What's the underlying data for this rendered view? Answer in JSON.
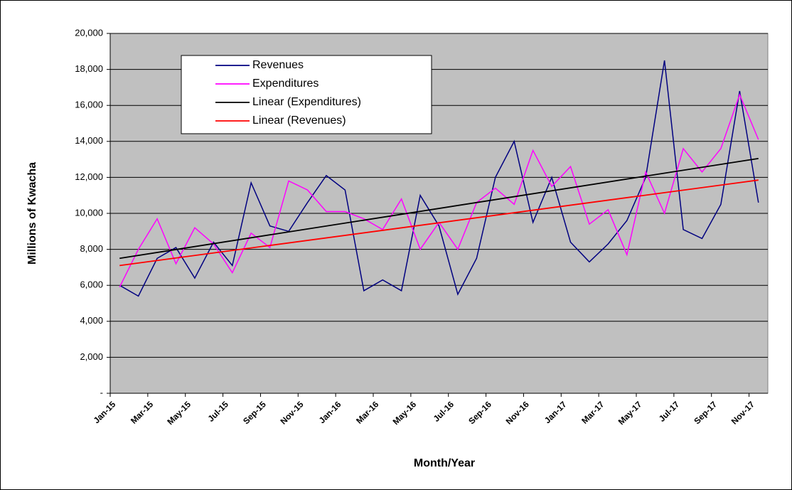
{
  "chart_data": {
    "type": "line",
    "xlabel": "Month/Year",
    "ylabel": "Millions of Kwacha",
    "categories": [
      "Jan-15",
      null,
      "Mar-15",
      null,
      "May-15",
      null,
      "Jul-15",
      null,
      "Sep-15",
      null,
      "Nov-15",
      null,
      "Jan-16",
      null,
      "Mar-16",
      null,
      "May-16",
      null,
      "Jul-16",
      null,
      "Sep-16",
      null,
      "Nov-16",
      null,
      "Jan-17",
      null,
      "Mar-17",
      null,
      "May-17",
      null,
      "Jul-17",
      null,
      "Sep-17",
      null,
      "Nov-17"
    ],
    "series": [
      {
        "name": "Revenues",
        "color": "#000080",
        "values": [
          6000,
          5400,
          7500,
          8100,
          6400,
          8400,
          7100,
          11700,
          9300,
          9000,
          10600,
          12100,
          11300,
          5700,
          6300,
          5700,
          11000,
          9300,
          5500,
          7500,
          12000,
          14000,
          9500,
          12000,
          8400,
          7300,
          8300,
          9600,
          12000,
          18500,
          9100,
          8600,
          10500,
          16800,
          10600
        ]
      },
      {
        "name": "Expenditures",
        "color": "#ff00ff",
        "values": [
          5900,
          8000,
          9700,
          7200,
          9200,
          8300,
          6700,
          8900,
          8100,
          11800,
          11300,
          10100,
          10100,
          9700,
          9100,
          10800,
          8000,
          9500,
          8000,
          10600,
          11400,
          10500,
          13500,
          11500,
          12600,
          9400,
          10200,
          7700,
          12300,
          10000,
          13600,
          12300,
          13600,
          16600,
          14100
        ]
      }
    ],
    "trendlines": [
      {
        "name": "Linear (Expenditures)",
        "color": "#000000",
        "values": [
          7500,
          13050
        ]
      },
      {
        "name": "Linear (Revenues)",
        "color": "#ff0000",
        "values": [
          7100,
          11850
        ]
      }
    ],
    "ylim": [
      0,
      20000
    ],
    "yticks": [
      {
        "value": 0,
        "label": "-"
      },
      {
        "value": 2000,
        "label": "2,000"
      },
      {
        "value": 4000,
        "label": "4,000"
      },
      {
        "value": 6000,
        "label": "6,000"
      },
      {
        "value": 8000,
        "label": "8,000"
      },
      {
        "value": 10000,
        "label": "10,000"
      },
      {
        "value": 12000,
        "label": "12,000"
      },
      {
        "value": 14000,
        "label": "14,000"
      },
      {
        "value": 16000,
        "label": "16,000"
      },
      {
        "value": 18000,
        "label": "18,000"
      },
      {
        "value": 20000,
        "label": "20,000"
      }
    ],
    "grid": true,
    "legend": "upper left",
    "background": "#c0c0c0"
  }
}
